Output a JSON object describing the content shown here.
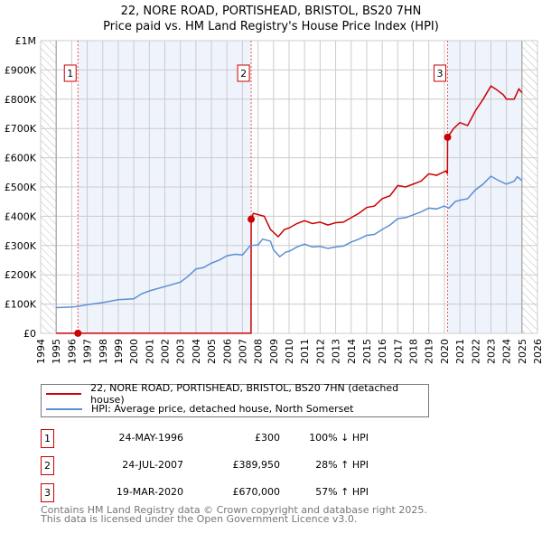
{
  "title": "22, NORE ROAD, PORTISHEAD, BRISTOL, BS20 7HN",
  "subtitle": "Price paid vs. HM Land Registry's House Price Index (HPI)",
  "colors": {
    "property": "#cc0000",
    "hpi": "#5b8fd4",
    "shade": "#eef3fc"
  },
  "chart_data": {
    "type": "line",
    "title": "Price paid vs. HM Land Registry's House Price Index (HPI)",
    "xlim": [
      1994,
      2026
    ],
    "ylim": [
      0,
      1000000
    ],
    "x_ticks": [
      "1994",
      "1995",
      "1996",
      "1997",
      "1998",
      "1999",
      "2000",
      "2001",
      "2002",
      "2003",
      "2004",
      "2005",
      "2006",
      "2007",
      "2008",
      "2009",
      "2010",
      "2011",
      "2012",
      "2013",
      "2014",
      "2015",
      "2016",
      "2017",
      "2018",
      "2019",
      "2020",
      "2021",
      "2022",
      "2023",
      "2024",
      "2025",
      "2026"
    ],
    "y_ticks": [
      {
        "v": 0,
        "label": "£0"
      },
      {
        "v": 100000,
        "label": "£100K"
      },
      {
        "v": 200000,
        "label": "£200K"
      },
      {
        "v": 300000,
        "label": "£300K"
      },
      {
        "v": 400000,
        "label": "£400K"
      },
      {
        "v": 500000,
        "label": "£500K"
      },
      {
        "v": 600000,
        "label": "£600K"
      },
      {
        "v": 700000,
        "label": "£700K"
      },
      {
        "v": 800000,
        "label": "£800K"
      },
      {
        "v": 900000,
        "label": "£900K"
      },
      {
        "v": 1000000,
        "label": "£1M"
      }
    ],
    "grid": true,
    "series": [
      {
        "name": "22, NORE ROAD, PORTISHEAD, BRISTOL, BS20 7HN (detached house)",
        "color": "#cc0000",
        "x": [
          1995,
          1996.4,
          2007.55,
          2007.56,
          2007.7,
          2008.4,
          2008.8,
          2009.3,
          2009.7,
          2010,
          2010.5,
          2011,
          2011.5,
          2012,
          2012.5,
          2013,
          2013.5,
          2014,
          2014.5,
          2015,
          2015.5,
          2016,
          2016.5,
          2017,
          2017.5,
          2018,
          2018.5,
          2019,
          2019.5,
          2020.1,
          2020.2,
          2020.21,
          2020.6,
          2021,
          2021.5,
          2022,
          2022.5,
          2023,
          2023.3,
          2023.8,
          2024,
          2024.5,
          2024.8,
          2025
        ],
        "y": [
          300,
          300,
          300,
          389950,
          410000,
          400000,
          355000,
          330000,
          355000,
          360000,
          375000,
          385000,
          375000,
          380000,
          370000,
          378000,
          380000,
          395000,
          410000,
          430000,
          435000,
          460000,
          470000,
          505000,
          500000,
          510000,
          520000,
          545000,
          540000,
          555000,
          545000,
          670000,
          700000,
          720000,
          710000,
          760000,
          800000,
          845000,
          835000,
          815000,
          800000,
          800000,
          835000,
          822000
        ]
      },
      {
        "name": "HPI: Average price, detached house, North Somerset",
        "color": "#5b8fd4",
        "x": [
          1995,
          1996,
          1996.4,
          1997,
          1998,
          1999,
          2000,
          2000.5,
          2001,
          2002,
          2003,
          2003.5,
          2004,
          2004.5,
          2005,
          2005.5,
          2006,
          2006.5,
          2007,
          2007.5,
          2008,
          2008.3,
          2008.8,
          2009,
          2009.4,
          2009.8,
          2010,
          2010.5,
          2011,
          2011.5,
          2012,
          2012.5,
          2013,
          2013.5,
          2014,
          2014.5,
          2015,
          2015.5,
          2016,
          2016.5,
          2017,
          2017.5,
          2018,
          2018.5,
          2019,
          2019.5,
          2020,
          2020.3,
          2020.7,
          2021,
          2021.5,
          2022,
          2022.5,
          2023,
          2023.5,
          2024,
          2024.5,
          2024.7,
          2025
        ],
        "y": [
          88000,
          90000,
          92000,
          98000,
          105000,
          115000,
          118000,
          135000,
          145000,
          160000,
          175000,
          195000,
          220000,
          225000,
          240000,
          250000,
          265000,
          270000,
          268000,
          300000,
          302000,
          322000,
          315000,
          285000,
          262000,
          278000,
          280000,
          295000,
          305000,
          295000,
          297000,
          290000,
          295000,
          298000,
          312000,
          322000,
          335000,
          338000,
          355000,
          370000,
          392000,
          395000,
          405000,
          415000,
          428000,
          425000,
          435000,
          428000,
          450000,
          455000,
          460000,
          490000,
          510000,
          537000,
          522000,
          510000,
          520000,
          535000,
          522000
        ]
      }
    ],
    "sales": [
      {
        "id": "1",
        "x": 1996.4,
        "y": 300
      },
      {
        "id": "2",
        "x": 2007.56,
        "y": 389950
      },
      {
        "id": "3",
        "x": 2020.21,
        "y": 670000
      }
    ],
    "legend_position": "bottom"
  },
  "legend": {
    "property": "22, NORE ROAD, PORTISHEAD, BRISTOL, BS20 7HN (detached house)",
    "hpi": "HPI: Average price, detached house, North Somerset"
  },
  "transactions": [
    {
      "id": "1",
      "date": "24-MAY-1996",
      "price": "£300",
      "hpi": "100% ↓ HPI"
    },
    {
      "id": "2",
      "date": "24-JUL-2007",
      "price": "£389,950",
      "hpi": "28% ↑ HPI"
    },
    {
      "id": "3",
      "date": "19-MAR-2020",
      "price": "£670,000",
      "hpi": "57% ↑ HPI"
    }
  ],
  "footer": {
    "line1": "Contains HM Land Registry data © Crown copyright and database right 2025.",
    "line2": "This data is licensed under the Open Government Licence v3.0."
  }
}
